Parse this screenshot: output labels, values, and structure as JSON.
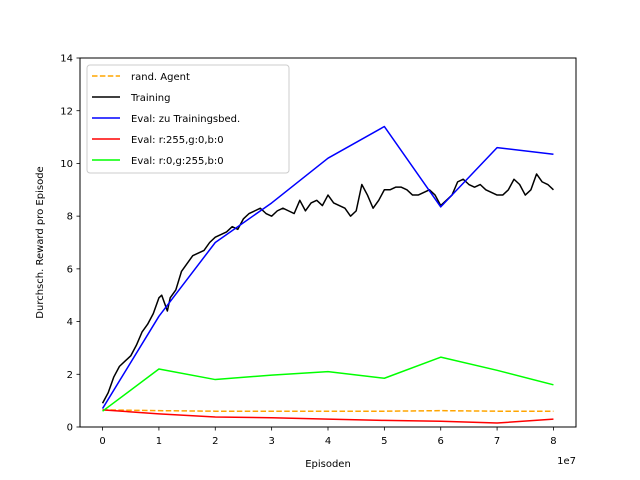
{
  "chart_data": {
    "type": "line",
    "xlabel": "Episoden",
    "ylabel": "Durchsch. Reward pro Episode",
    "x_offset_text": "1e7",
    "xlim": [
      -0.4,
      8.4
    ],
    "ylim": [
      0,
      14
    ],
    "x_ticks": [
      0,
      1,
      2,
      3,
      4,
      5,
      6,
      7,
      8
    ],
    "y_ticks": [
      0,
      2,
      4,
      6,
      8,
      10,
      12,
      14
    ],
    "x_tick_labels": [
      "0",
      "1",
      "2",
      "3",
      "4",
      "5",
      "6",
      "7",
      "8"
    ],
    "y_tick_labels": [
      "0",
      "2",
      "4",
      "6",
      "8",
      "10",
      "12",
      "14"
    ],
    "grid": false,
    "legend_position": "top-left",
    "series": [
      {
        "name": "rand. Agent",
        "color": "#ffa500",
        "dash": true,
        "x": [
          0,
          1,
          2,
          3,
          4,
          5,
          6,
          7,
          8
        ],
        "y": [
          0.65,
          0.62,
          0.6,
          0.6,
          0.6,
          0.6,
          0.62,
          0.6,
          0.6
        ]
      },
      {
        "name": "Training",
        "color": "#000000",
        "dash": false,
        "x": [
          0,
          0.1,
          0.2,
          0.3,
          0.4,
          0.5,
          0.6,
          0.7,
          0.8,
          0.9,
          1.0,
          1.05,
          1.1,
          1.15,
          1.2,
          1.3,
          1.4,
          1.5,
          1.6,
          1.7,
          1.8,
          1.9,
          2.0,
          2.1,
          2.2,
          2.3,
          2.4,
          2.5,
          2.6,
          2.7,
          2.8,
          2.9,
          3.0,
          3.1,
          3.2,
          3.3,
          3.4,
          3.5,
          3.6,
          3.7,
          3.8,
          3.9,
          4.0,
          4.1,
          4.2,
          4.3,
          4.4,
          4.5,
          4.6,
          4.7,
          4.8,
          4.9,
          5.0,
          5.1,
          5.2,
          5.3,
          5.4,
          5.5,
          5.6,
          5.7,
          5.8,
          5.9,
          6.0,
          6.1,
          6.2,
          6.3,
          6.4,
          6.5,
          6.6,
          6.7,
          6.8,
          6.9,
          7.0,
          7.1,
          7.2,
          7.3,
          7.4,
          7.5,
          7.6,
          7.7,
          7.8,
          7.9,
          8.0
        ],
        "y": [
          0.9,
          1.3,
          1.9,
          2.3,
          2.5,
          2.7,
          3.1,
          3.6,
          3.9,
          4.3,
          4.9,
          5.0,
          4.7,
          4.4,
          4.9,
          5.2,
          5.9,
          6.2,
          6.5,
          6.6,
          6.7,
          7.0,
          7.2,
          7.3,
          7.4,
          7.6,
          7.5,
          7.9,
          8.1,
          8.2,
          8.3,
          8.1,
          8.0,
          8.2,
          8.3,
          8.2,
          8.1,
          8.6,
          8.2,
          8.5,
          8.6,
          8.4,
          8.8,
          8.5,
          8.4,
          8.3,
          8.0,
          8.2,
          9.2,
          8.8,
          8.3,
          8.6,
          9.0,
          9.0,
          9.1,
          9.1,
          9.0,
          8.8,
          8.8,
          8.9,
          9.0,
          8.8,
          8.4,
          8.6,
          8.8,
          9.3,
          9.4,
          9.2,
          9.1,
          9.2,
          9.0,
          8.9,
          8.8,
          8.8,
          9.0,
          9.4,
          9.2,
          8.8,
          9.0,
          9.6,
          9.3,
          9.2,
          9.0
        ]
      },
      {
        "name": "Eval: zu Trainingsbed.",
        "color": "#0000ff",
        "dash": false,
        "x": [
          0,
          1,
          2,
          3,
          4,
          5,
          6,
          7,
          8
        ],
        "y": [
          0.7,
          4.2,
          7.0,
          8.5,
          10.2,
          11.4,
          8.35,
          10.6,
          10.35
        ]
      },
      {
        "name": "Eval: r:255,g:0,b:0",
        "color": "#ff0000",
        "dash": false,
        "x": [
          0,
          1,
          2,
          3,
          4,
          5,
          6,
          7,
          8
        ],
        "y": [
          0.65,
          0.5,
          0.38,
          0.35,
          0.3,
          0.25,
          0.22,
          0.15,
          0.3
        ]
      },
      {
        "name": "Eval: r:0,g:255,b:0",
        "color": "#00ff00",
        "dash": false,
        "x": [
          0,
          1,
          2,
          3,
          4,
          5,
          6,
          7,
          8
        ],
        "y": [
          0.6,
          2.2,
          1.8,
          1.97,
          2.1,
          1.85,
          2.65,
          2.15,
          1.6
        ]
      }
    ]
  }
}
